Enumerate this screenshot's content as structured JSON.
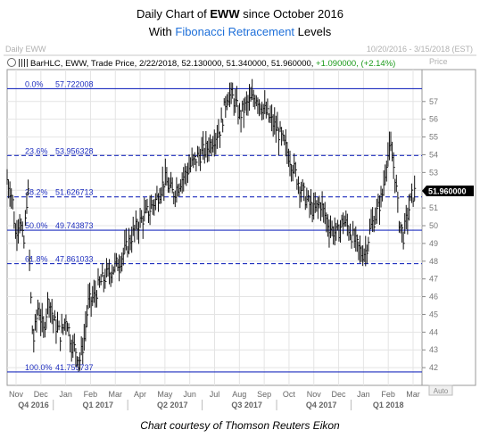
{
  "title": {
    "prefix": "Daily Chart of ",
    "ticker": "EWW",
    "suffix": " since October 2016",
    "line2_prefix": "With ",
    "line2_highlight": "Fibonacci Retracement",
    "line2_suffix": " Levels"
  },
  "panel": {
    "name": "Daily EWW",
    "date_range": "10/20/2016 - 3/15/2018 (EST)",
    "price_label": "Price",
    "auto_label": "Auto"
  },
  "ohlc": {
    "text": "BarHLC, EWW, Trade Price, 2/22/2018, 52.130000, 51.340000, 51.960000, ",
    "change": "+1.090000, (+2.14%)"
  },
  "last_price": "51.960000",
  "caption": "Chart courtesy of Thomson Reuters Eikon",
  "colors": {
    "fib_line": "#1f2fbf",
    "fib_text": "#1f2fbf",
    "bars": "#111111",
    "grid": "#e4e4e4",
    "title_accent": "#1e6fd9"
  },
  "chart_data": {
    "type": "bar",
    "title": "Daily Chart of EWW since October 2016",
    "ylabel": "Price",
    "ylim": [
      41.0,
      58.8
    ],
    "yticks": [
      42,
      43,
      44,
      45,
      46,
      47,
      48,
      49,
      50,
      51,
      52,
      53,
      54,
      55,
      56,
      57
    ],
    "months": [
      "Nov",
      "Dec",
      "Jan",
      "Feb",
      "Mar",
      "Apr",
      "May",
      "Jun",
      "Jul",
      "Aug",
      "Sep",
      "Oct",
      "Nov",
      "Dec",
      "Jan",
      "Feb",
      "Mar"
    ],
    "quarters": [
      "Q4 2016",
      "Q1 2017",
      "Q2 2017",
      "Q3 2017",
      "Q4 2017",
      "Q1 2018"
    ],
    "fib_levels": [
      {
        "label": "0.0%",
        "value": "57.722008",
        "price": 57.722008,
        "style": "solid"
      },
      {
        "label": "23.6%",
        "value": "53.956328",
        "price": 53.956328,
        "style": "dashed"
      },
      {
        "label": "38.2%",
        "value": "51.626713",
        "price": 51.626713,
        "style": "dashed"
      },
      {
        "label": "50.0%",
        "value": "49.743873",
        "price": 49.743873,
        "style": "solid"
      },
      {
        "label": "61.8%",
        "value": "47.861033",
        "price": 47.861033,
        "style": "dashed"
      },
      {
        "label": "100.0%",
        "value": "41.755737",
        "price": 41.755737,
        "style": "solid"
      }
    ],
    "series": [
      {
        "close_points": [
          [
            0,
            52.6
          ],
          [
            5,
            51.6
          ],
          [
            8,
            49.5
          ],
          [
            12,
            50.5
          ],
          [
            16,
            48.8
          ],
          [
            20,
            52.4
          ],
          [
            22,
            47.0
          ],
          [
            25,
            43.3
          ],
          [
            30,
            45.5
          ],
          [
            35,
            44.0
          ],
          [
            40,
            46.0
          ],
          [
            45,
            44.6
          ],
          [
            52,
            43.8
          ],
          [
            57,
            44.9
          ],
          [
            62,
            43.3
          ],
          [
            66,
            43.0
          ],
          [
            70,
            42.4
          ],
          [
            74,
            43.5
          ],
          [
            78,
            45.6
          ],
          [
            84,
            46.0
          ],
          [
            90,
            46.8
          ],
          [
            96,
            47.2
          ],
          [
            102,
            47.6
          ],
          [
            108,
            48.0
          ],
          [
            114,
            48.6
          ],
          [
            120,
            49.4
          ],
          [
            128,
            50.2
          ],
          [
            136,
            50.8
          ],
          [
            144,
            51.5
          ],
          [
            152,
            52.6
          ],
          [
            160,
            51.8
          ],
          [
            168,
            52.6
          ],
          [
            176,
            53.3
          ],
          [
            184,
            53.9
          ],
          [
            192,
            54.3
          ],
          [
            200,
            55.0
          ],
          [
            206,
            55.5
          ],
          [
            212,
            57.4
          ],
          [
            218,
            57.2
          ],
          [
            224,
            56.2
          ],
          [
            232,
            56.9
          ],
          [
            240,
            57.3
          ],
          [
            248,
            56.5
          ],
          [
            256,
            55.8
          ],
          [
            264,
            55.0
          ],
          [
            272,
            53.9
          ],
          [
            280,
            52.6
          ],
          [
            288,
            51.5
          ],
          [
            296,
            50.8
          ],
          [
            302,
            51.3
          ],
          [
            310,
            50.0
          ],
          [
            318,
            49.5
          ],
          [
            324,
            50.3
          ],
          [
            330,
            49.8
          ],
          [
            336,
            49.0
          ],
          [
            342,
            48.4
          ],
          [
            346,
            48.6
          ],
          [
            350,
            49.8
          ],
          [
            354,
            50.4
          ],
          [
            358,
            51.0
          ],
          [
            362,
            51.8
          ],
          [
            366,
            53.8
          ],
          [
            370,
            54.3
          ],
          [
            374,
            52.8
          ],
          [
            378,
            50.3
          ],
          [
            382,
            49.4
          ],
          [
            386,
            50.6
          ],
          [
            390,
            51.6
          ],
          [
            394,
            51.96
          ]
        ]
      }
    ]
  }
}
